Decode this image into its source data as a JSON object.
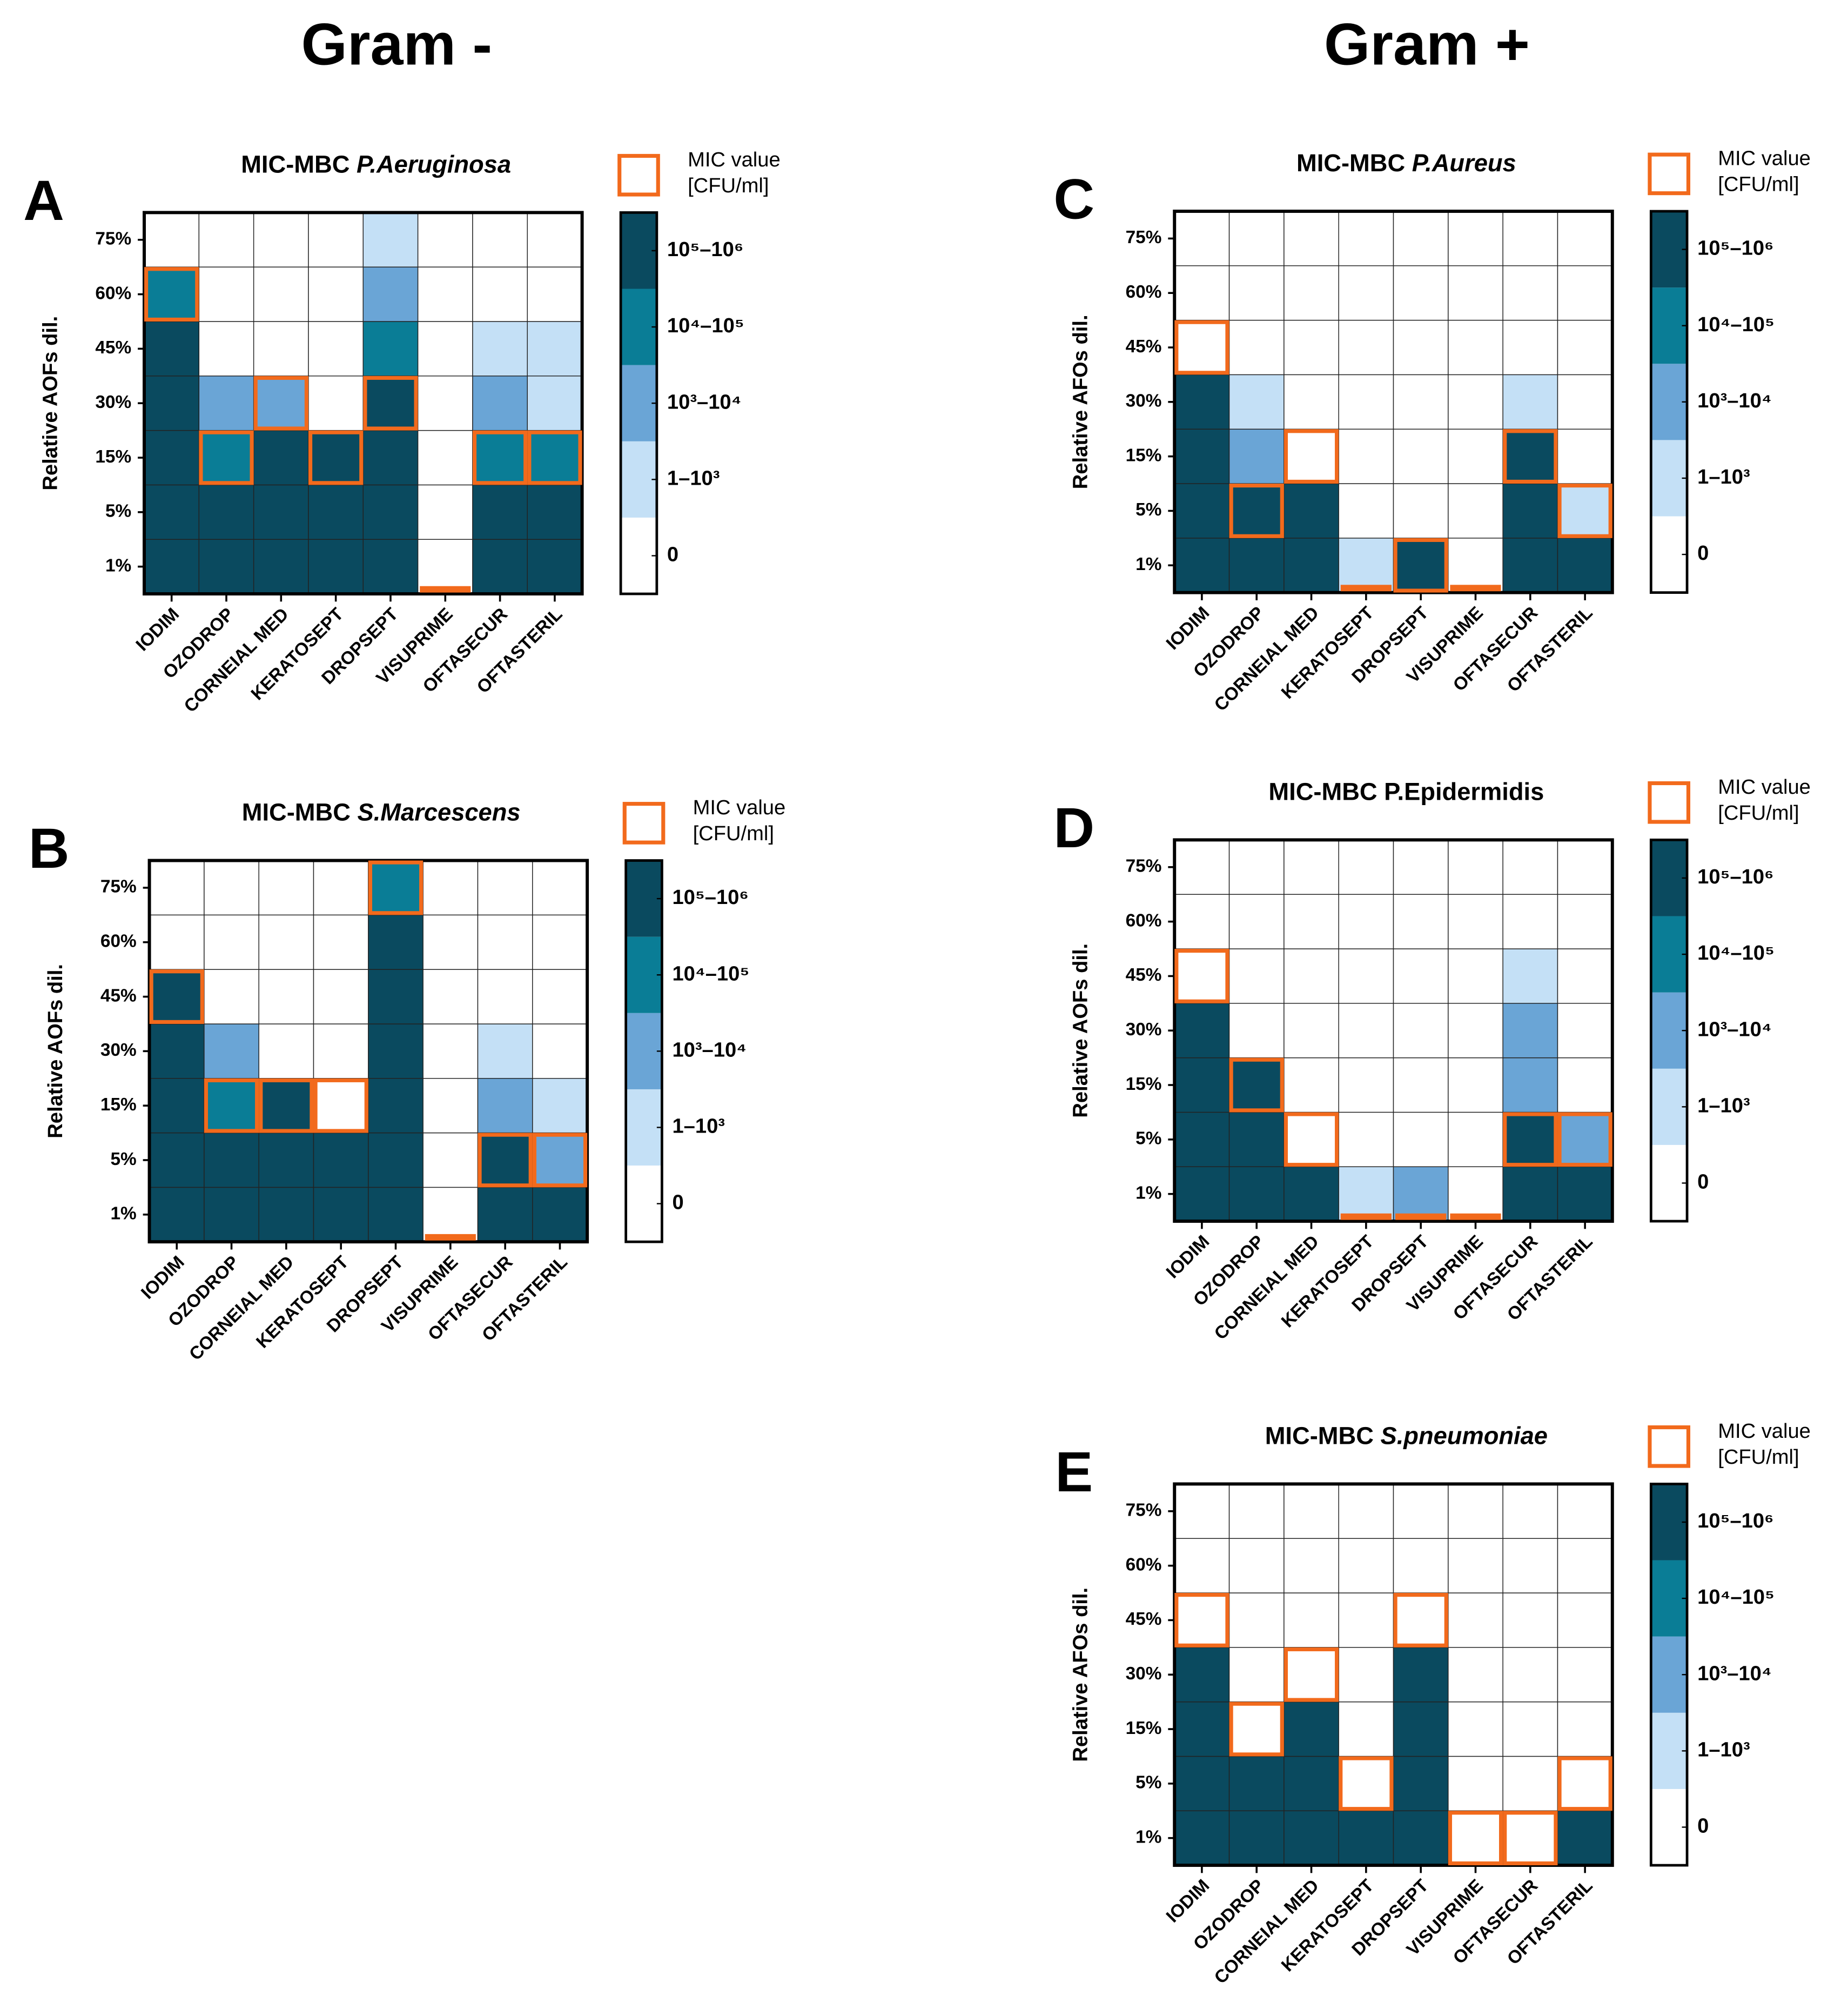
{
  "headers": [
    "Gram -",
    "Gram +"
  ],
  "mic_legend": [
    "MIC value",
    "[CFU/ml]"
  ],
  "levels": [
    {
      "value": 0,
      "label": "0",
      "color": "#ffffff"
    },
    {
      "value": 1,
      "label": "1–10³",
      "color": "#c4e0f6"
    },
    {
      "value": 2,
      "label": "10³–10⁴",
      "color": "#6aa5d6"
    },
    {
      "value": 3,
      "label": "10⁴–10⁵",
      "color": "#0a7d96"
    },
    {
      "value": 4,
      "label": "10⁵–10⁶",
      "color": "#0a4a5f"
    }
  ],
  "mic_color": "#f26a1c",
  "chart_data": [
    {
      "type": "heatmap",
      "panel": "A",
      "title": "MIC-MBC",
      "species": "P.Aeruginosa",
      "ylabel": "Relative AOFs dil.",
      "categories": [
        "IODIM",
        "OZODROP",
        "CORNEIAL MED",
        "KERATOSEPT",
        "DROPSEPT",
        "VISUPRIME",
        "OFTASECUR",
        "OFTASTERIL"
      ],
      "yticks": [
        {
          "value": 1,
          "label": "1%"
        },
        {
          "value": 5,
          "label": "5%"
        },
        {
          "value": 15,
          "label": "15%"
        },
        {
          "value": 30,
          "label": "30%"
        },
        {
          "value": 45,
          "label": "45%"
        },
        {
          "value": 60,
          "label": "60%"
        },
        {
          "value": 75,
          "label": "75%"
        }
      ],
      "z": [
        [
          4,
          4,
          4,
          4,
          4,
          0,
          4,
          4
        ],
        [
          4,
          4,
          4,
          4,
          4,
          0,
          4,
          4
        ],
        [
          4,
          3,
          4,
          4,
          4,
          0,
          3,
          3
        ],
        [
          4,
          2,
          2,
          0,
          4,
          0,
          2,
          1
        ],
        [
          4,
          0,
          0,
          0,
          3,
          0,
          1,
          1
        ],
        [
          3,
          0,
          0,
          0,
          2,
          0,
          0,
          0
        ],
        [
          0,
          0,
          0,
          0,
          1,
          0,
          0,
          0
        ]
      ],
      "mic": [
        60,
        15,
        30,
        15,
        30,
        0,
        15,
        15
      ]
    },
    {
      "type": "heatmap",
      "panel": "B",
      "title": "MIC-MBC",
      "species": "S.Marcescens",
      "ylabel": "Relative AOFs dil.",
      "categories": [
        "IODIM",
        "OZODROP",
        "CORNEIAL MED",
        "KERATOSEPT",
        "DROPSEPT",
        "VISUPRIME",
        "OFTASECUR",
        "OFTASTERIL"
      ],
      "yticks": [
        {
          "value": 1,
          "label": "1%"
        },
        {
          "value": 5,
          "label": "5%"
        },
        {
          "value": 15,
          "label": "15%"
        },
        {
          "value": 30,
          "label": "30%"
        },
        {
          "value": 45,
          "label": "45%"
        },
        {
          "value": 60,
          "label": "60%"
        },
        {
          "value": 75,
          "label": "75%"
        }
      ],
      "z": [
        [
          4,
          4,
          4,
          4,
          4,
          0,
          4,
          4
        ],
        [
          4,
          4,
          4,
          4,
          4,
          0,
          4,
          2
        ],
        [
          4,
          3,
          4,
          0,
          4,
          0,
          2,
          1
        ],
        [
          4,
          2,
          0,
          0,
          4,
          0,
          1,
          0
        ],
        [
          4,
          0,
          0,
          0,
          4,
          0,
          0,
          0
        ],
        [
          0,
          0,
          0,
          0,
          4,
          0,
          0,
          0
        ],
        [
          0,
          0,
          0,
          0,
          3,
          0,
          0,
          0
        ]
      ],
      "mic": [
        45,
        15,
        15,
        15,
        75,
        0,
        5,
        5
      ]
    },
    {
      "type": "heatmap",
      "panel": "C",
      "title": "MIC-MBC",
      "species": "P.Aureus",
      "ylabel": "Relative AFOs dil.",
      "categories": [
        "IODIM",
        "OZODROP",
        "CORNEIAL MED",
        "KERATOSEPT",
        "DROPSEPT",
        "VISUPRIME",
        "OFTASECUR",
        "OFTASTERIL"
      ],
      "yticks": [
        {
          "value": 1,
          "label": "1%"
        },
        {
          "value": 5,
          "label": "5%"
        },
        {
          "value": 15,
          "label": "15%"
        },
        {
          "value": 30,
          "label": "30%"
        },
        {
          "value": 45,
          "label": "45%"
        },
        {
          "value": 60,
          "label": "60%"
        },
        {
          "value": 75,
          "label": "75%"
        }
      ],
      "z": [
        [
          4,
          4,
          4,
          1,
          4,
          0,
          4,
          4
        ],
        [
          4,
          4,
          4,
          0,
          0,
          0,
          4,
          1
        ],
        [
          4,
          2,
          0,
          0,
          0,
          0,
          4,
          0
        ],
        [
          4,
          1,
          0,
          0,
          0,
          0,
          1,
          0
        ],
        [
          0,
          0,
          0,
          0,
          0,
          0,
          0,
          0
        ],
        [
          0,
          0,
          0,
          0,
          0,
          0,
          0,
          0
        ],
        [
          0,
          0,
          0,
          0,
          0,
          0,
          0,
          0
        ]
      ],
      "mic": [
        45,
        5,
        15,
        0,
        1,
        0,
        15,
        5
      ]
    },
    {
      "type": "heatmap",
      "panel": "D",
      "title": "MIC-MBC P.Epidermidis",
      "ylabel": "Relative AOFs dil.",
      "categories": [
        "IODIM",
        "OZODROP",
        "CORNEIAL MED",
        "KERATOSEPT",
        "DROPSEPT",
        "VISUPRIME",
        "OFTASECUR",
        "OFTASTERIL"
      ],
      "yticks": [
        {
          "value": 1,
          "label": "1%"
        },
        {
          "value": 5,
          "label": "5%"
        },
        {
          "value": 15,
          "label": "15%"
        },
        {
          "value": 30,
          "label": "30%"
        },
        {
          "value": 45,
          "label": "45%"
        },
        {
          "value": 60,
          "label": "60%"
        },
        {
          "value": 75,
          "label": "75%"
        }
      ],
      "z": [
        [
          4,
          4,
          4,
          1,
          2,
          0,
          4,
          4
        ],
        [
          4,
          4,
          0,
          0,
          0,
          0,
          4,
          2
        ],
        [
          4,
          4,
          0,
          0,
          0,
          0,
          2,
          0
        ],
        [
          4,
          0,
          0,
          0,
          0,
          0,
          2,
          0
        ],
        [
          0,
          0,
          0,
          0,
          0,
          0,
          1,
          0
        ],
        [
          0,
          0,
          0,
          0,
          0,
          0,
          0,
          0
        ],
        [
          0,
          0,
          0,
          0,
          0,
          0,
          0,
          0
        ]
      ],
      "mic": [
        45,
        15,
        5,
        0,
        0,
        0,
        5,
        5
      ]
    },
    {
      "type": "heatmap",
      "panel": "E",
      "title": "MIC-MBC",
      "species": "S.pneumoniae",
      "ylabel": "Relative AFOs dil.",
      "categories": [
        "IODIM",
        "OZODROP",
        "CORNEIAL MED",
        "KERATOSEPT",
        "DROPSEPT",
        "VISUPRIME",
        "OFTASECUR",
        "OFTASTERIL"
      ],
      "yticks": [
        {
          "value": 1,
          "label": "1%"
        },
        {
          "value": 5,
          "label": "5%"
        },
        {
          "value": 15,
          "label": "15%"
        },
        {
          "value": 30,
          "label": "30%"
        },
        {
          "value": 45,
          "label": "45%"
        },
        {
          "value": 60,
          "label": "60%"
        },
        {
          "value": 75,
          "label": "75%"
        }
      ],
      "z": [
        [
          4,
          4,
          4,
          4,
          4,
          0,
          0,
          4
        ],
        [
          4,
          4,
          4,
          0,
          4,
          0,
          0,
          0
        ],
        [
          4,
          0,
          4,
          0,
          4,
          0,
          0,
          0
        ],
        [
          4,
          0,
          0,
          0,
          4,
          0,
          0,
          0
        ],
        [
          0,
          0,
          0,
          0,
          0,
          0,
          0,
          0
        ],
        [
          0,
          0,
          0,
          0,
          0,
          0,
          0,
          0
        ],
        [
          0,
          0,
          0,
          0,
          0,
          0,
          0,
          0
        ]
      ],
      "mic": [
        45,
        15,
        30,
        5,
        45,
        1,
        1,
        5
      ]
    }
  ]
}
